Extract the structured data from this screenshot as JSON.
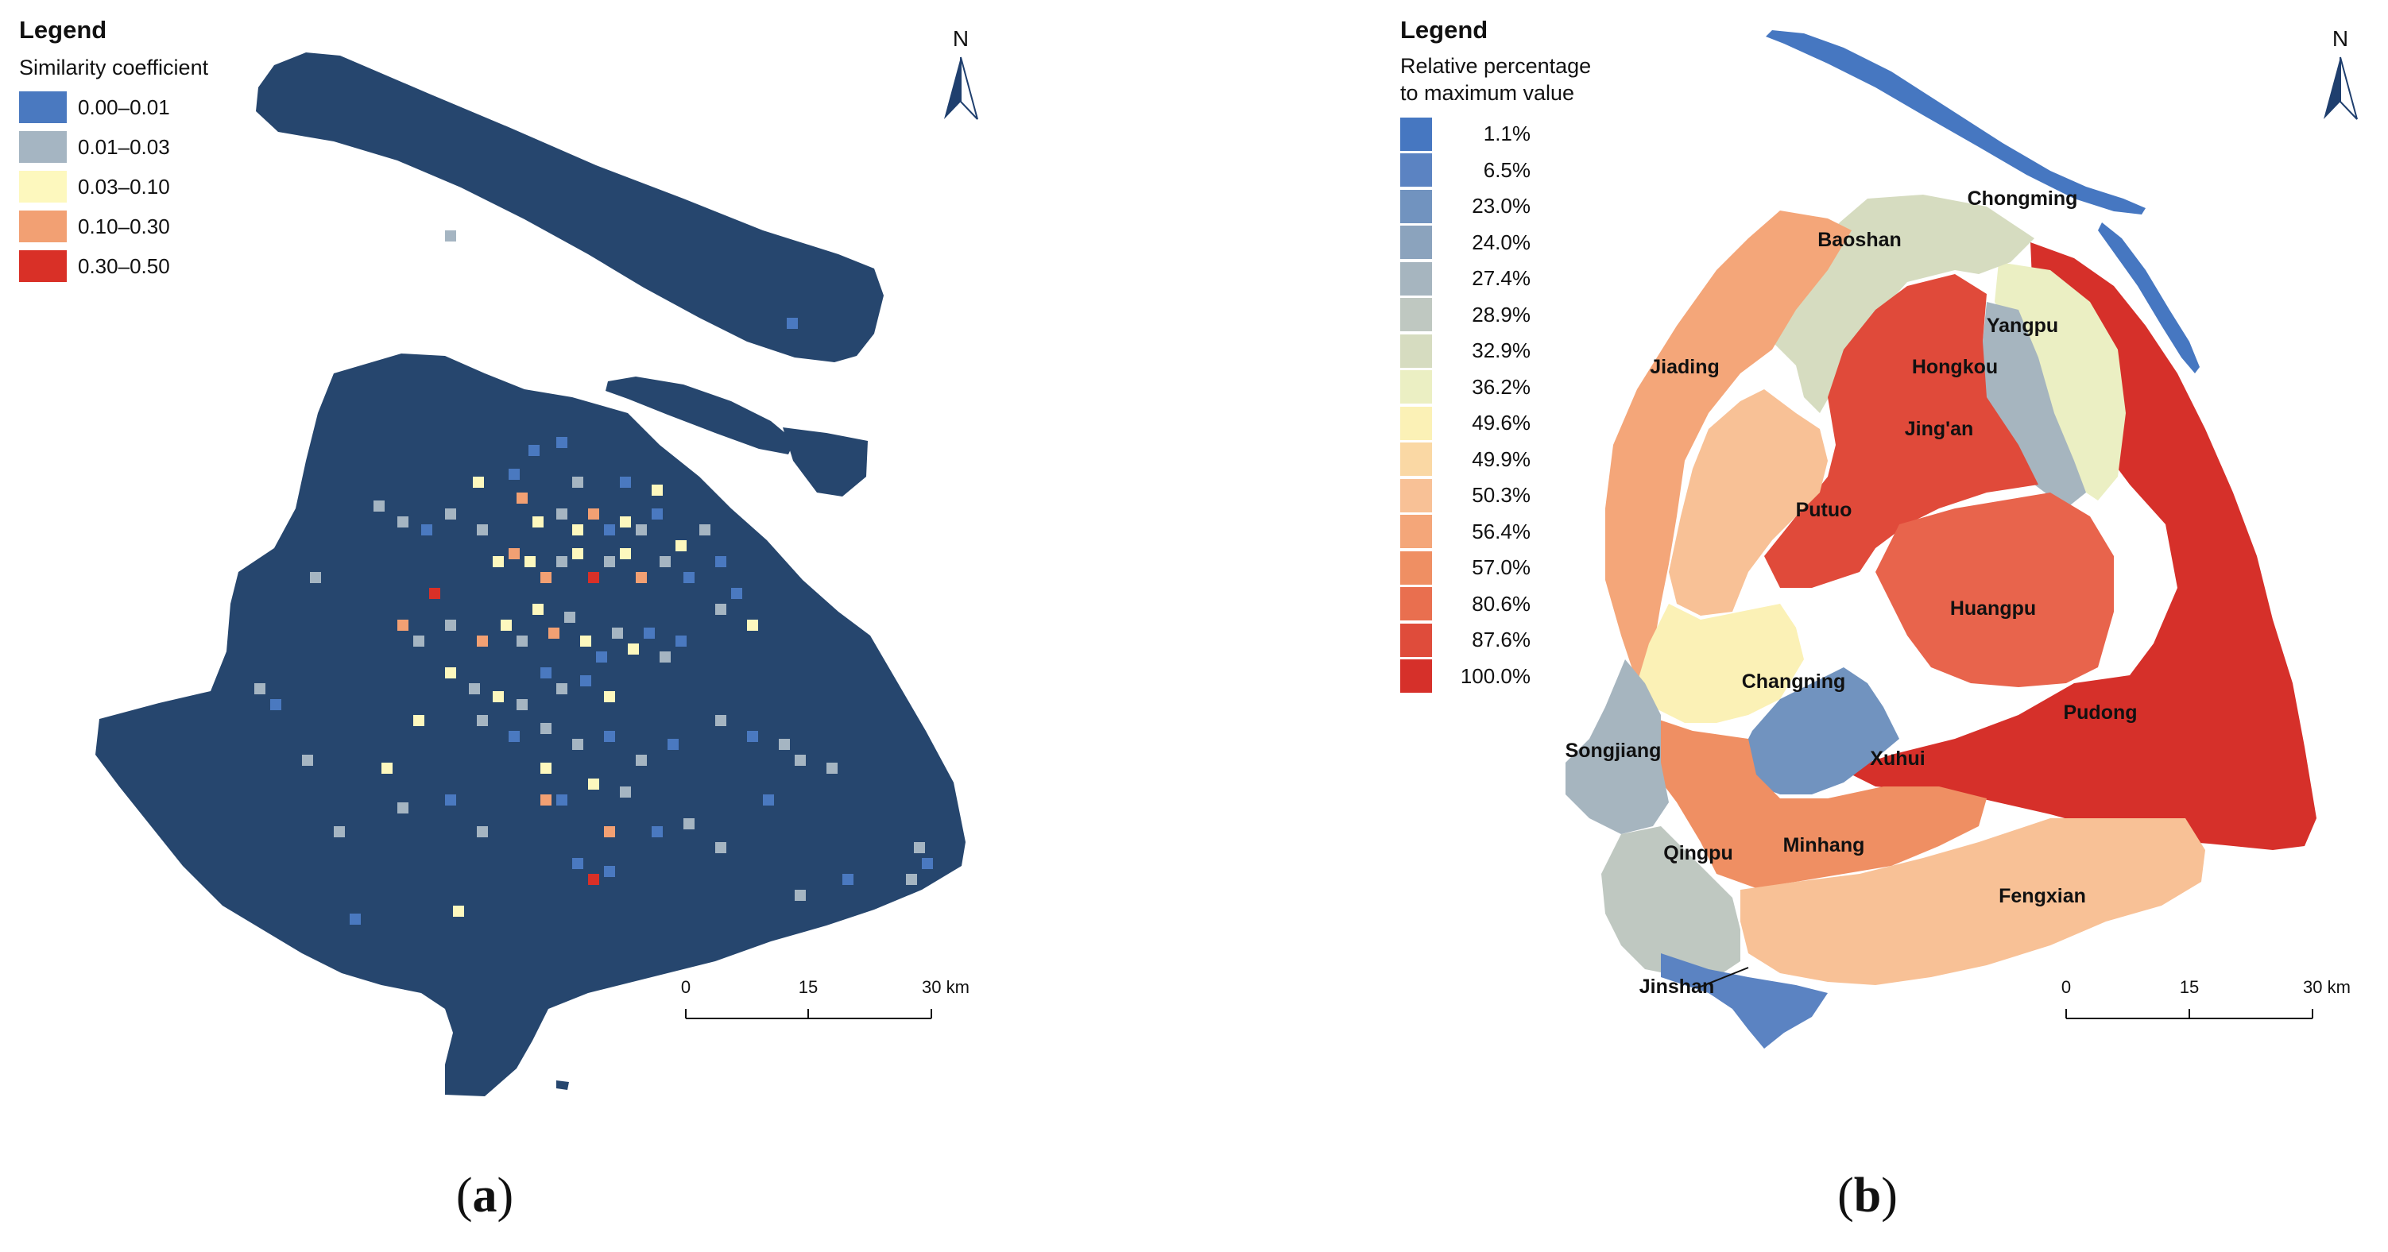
{
  "panel_a": {
    "legend_title": "Legend",
    "legend_subtitle": "Similarity coefficient",
    "legend_items": [
      {
        "label": "0.00–0.01",
        "color": "#4a79c0"
      },
      {
        "label": "0.01–0.03",
        "color": "#a5b5c2"
      },
      {
        "label": "0.03–0.10",
        "color": "#fdf8be"
      },
      {
        "label": "0.10–0.30",
        "color": "#f2a073"
      },
      {
        "label": "0.30–0.50",
        "color": "#d93027"
      }
    ],
    "base_color": "#26466e",
    "north_label": "N",
    "scale_labels": [
      "0",
      "15",
      "30 km"
    ],
    "caption_open": "(",
    "caption_letter": "a",
    "caption_close": ")"
  },
  "panel_b": {
    "legend_title": "Legend",
    "legend_subtitle_line1": "Relative percentage",
    "legend_subtitle_line2": "to maximum value",
    "legend_items": [
      {
        "label": "1.1%",
        "color": "#4677c1"
      },
      {
        "label": "6.5%",
        "color": "#5b83c2"
      },
      {
        "label": "23.0%",
        "color": "#7193bf"
      },
      {
        "label": "24.0%",
        "color": "#8ba3bd"
      },
      {
        "label": "27.4%",
        "color": "#a6b5bf"
      },
      {
        "label": "28.9%",
        "color": "#bfc8c1"
      },
      {
        "label": "32.9%",
        "color": "#d6dcc0"
      },
      {
        "label": "36.2%",
        "color": "#ebefc3"
      },
      {
        "label": "49.6%",
        "color": "#fbf1b6"
      },
      {
        "label": "49.9%",
        "color": "#fad8a4"
      },
      {
        "label": "50.3%",
        "color": "#f8c196"
      },
      {
        "label": "56.4%",
        "color": "#f4a679"
      },
      {
        "label": "57.0%",
        "color": "#ef8f63"
      },
      {
        "label": "80.6%",
        "color": "#e96f4f"
      },
      {
        "label": "87.6%",
        "color": "#df4c3b"
      },
      {
        "label": "100.0%",
        "color": "#d6302a"
      }
    ],
    "districts": {
      "chongming": "Chongming",
      "baoshan": "Baoshan",
      "yangpu": "Yangpu",
      "hongkou": "Hongkou",
      "jiading": "Jiading",
      "jingan": "Jing'an",
      "putuo": "Putuo",
      "huangpu": "Huangpu",
      "changning": "Changning",
      "pudong": "Pudong",
      "songjiang": "Songjiang",
      "xuhui": "Xuhui",
      "qingpu": "Qingpu",
      "minhang": "Minhang",
      "fengxian": "Fengxian",
      "jinshan": "Jinshan"
    },
    "north_label": "N",
    "scale_labels": [
      "0",
      "15",
      "30 km"
    ],
    "caption_open": "(",
    "caption_letter": "b",
    "caption_close": ")"
  }
}
